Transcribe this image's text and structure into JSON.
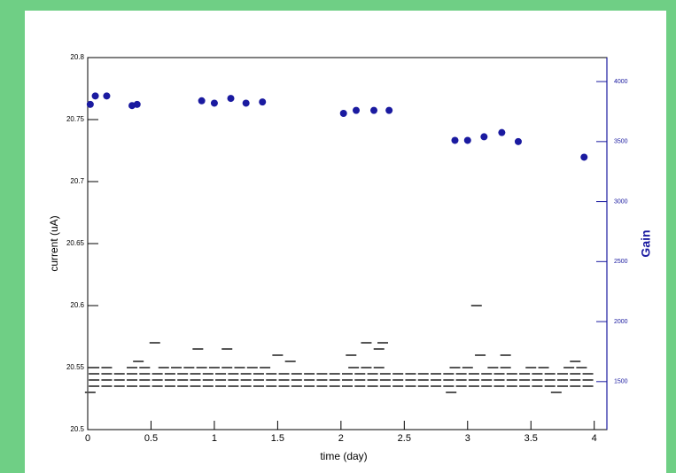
{
  "chart_data": {
    "type": "scatter",
    "xlabel": "time (day)",
    "ylabel": "current (uA)",
    "y2label": "Gain",
    "xlim": [
      0,
      4.1
    ],
    "xticks": [
      0,
      0.5,
      1,
      1.5,
      2,
      2.5,
      3,
      3.5,
      4
    ],
    "ylim": [
      20.5,
      20.8
    ],
    "yticks": [
      20.5,
      20.55,
      20.6,
      20.65,
      20.7,
      20.75,
      20.8
    ],
    "y2lim": [
      1100,
      4200
    ],
    "y2ticks": [
      1500,
      2000,
      2500,
      3000,
      3500,
      4000
    ],
    "series": [
      {
        "color": "#555555",
        "axis": "y",
        "x": [
          0.05,
          0.15,
          0.25,
          0.35,
          0.45,
          0.55,
          0.65,
          0.75,
          0.85,
          0.95,
          1.05,
          1.15,
          1.25,
          1.35,
          1.45,
          1.55,
          1.65,
          1.75,
          1.85,
          1.95,
          2.05,
          2.15,
          2.25,
          2.35,
          2.45,
          2.55,
          2.65,
          2.75,
          2.85,
          2.95,
          3.05,
          3.15,
          3.25,
          3.35,
          3.45,
          3.55,
          3.65,
          3.75,
          3.85,
          3.95,
          0.05,
          0.15,
          0.25,
          0.35,
          0.45,
          0.55,
          0.65,
          0.75,
          0.85,
          0.95,
          1.05,
          1.15,
          1.25,
          1.35,
          1.45,
          1.55,
          1.65,
          1.75,
          1.85,
          1.95,
          2.05,
          2.15,
          2.25,
          2.35,
          2.45,
          2.55,
          2.65,
          2.75,
          2.85,
          2.95,
          3.05,
          3.15,
          3.25,
          3.35,
          3.45,
          3.55,
          3.65,
          3.75,
          3.85,
          3.95,
          0.05,
          0.15,
          0.25,
          0.35,
          0.45,
          0.55,
          0.65,
          0.75,
          0.85,
          0.95,
          1.05,
          1.15,
          1.25,
          1.35,
          1.45,
          1.55,
          1.65,
          1.75,
          1.85,
          1.95,
          2.05,
          2.15,
          2.25,
          2.35,
          2.45,
          2.55,
          2.65,
          2.75,
          2.85,
          2.95,
          3.05,
          3.15,
          3.25,
          3.35,
          3.45,
          3.55,
          3.65,
          3.75,
          3.85,
          3.95,
          0.05,
          0.15,
          0.35,
          0.45,
          0.6,
          0.7,
          0.8,
          0.9,
          1.0,
          1.1,
          1.2,
          1.3,
          1.4,
          2.1,
          2.2,
          2.3,
          2.9,
          3.0,
          3.2,
          3.3,
          3.5,
          3.6,
          3.8,
          3.9,
          0.53,
          0.87,
          1.1,
          0.4,
          1.5,
          1.6,
          2.08,
          2.2,
          2.3,
          2.33,
          3.07,
          3.1,
          3.3,
          3.85,
          0.02,
          2.87,
          3.7
        ],
        "values": [
          20.545,
          20.545,
          20.545,
          20.545,
          20.545,
          20.545,
          20.545,
          20.545,
          20.545,
          20.545,
          20.545,
          20.545,
          20.545,
          20.545,
          20.545,
          20.545,
          20.545,
          20.545,
          20.545,
          20.545,
          20.545,
          20.545,
          20.545,
          20.545,
          20.545,
          20.545,
          20.545,
          20.545,
          20.545,
          20.545,
          20.545,
          20.545,
          20.545,
          20.545,
          20.545,
          20.545,
          20.545,
          20.545,
          20.545,
          20.545,
          20.54,
          20.54,
          20.54,
          20.54,
          20.54,
          20.54,
          20.54,
          20.54,
          20.54,
          20.54,
          20.54,
          20.54,
          20.54,
          20.54,
          20.54,
          20.54,
          20.54,
          20.54,
          20.54,
          20.54,
          20.54,
          20.54,
          20.54,
          20.54,
          20.54,
          20.54,
          20.54,
          20.54,
          20.54,
          20.54,
          20.54,
          20.54,
          20.54,
          20.54,
          20.54,
          20.54,
          20.54,
          20.54,
          20.54,
          20.54,
          20.535,
          20.535,
          20.535,
          20.535,
          20.535,
          20.535,
          20.535,
          20.535,
          20.535,
          20.535,
          20.535,
          20.535,
          20.535,
          20.535,
          20.535,
          20.535,
          20.535,
          20.535,
          20.535,
          20.535,
          20.535,
          20.535,
          20.535,
          20.535,
          20.535,
          20.535,
          20.535,
          20.535,
          20.535,
          20.535,
          20.535,
          20.535,
          20.535,
          20.535,
          20.535,
          20.535,
          20.535,
          20.535,
          20.535,
          20.535,
          20.55,
          20.55,
          20.55,
          20.55,
          20.55,
          20.55,
          20.55,
          20.55,
          20.55,
          20.55,
          20.55,
          20.55,
          20.55,
          20.55,
          20.55,
          20.55,
          20.55,
          20.55,
          20.55,
          20.55,
          20.55,
          20.55,
          20.55,
          20.55,
          20.57,
          20.565,
          20.565,
          20.555,
          20.56,
          20.555,
          20.56,
          20.57,
          20.565,
          20.57,
          20.6,
          20.56,
          20.56,
          20.555,
          20.53,
          20.53,
          20.53
        ]
      },
      {
        "color": "#1a1aa0",
        "axis": "y2",
        "x": [
          0.02,
          0.06,
          0.15,
          0.35,
          0.39,
          0.9,
          1.0,
          1.13,
          1.25,
          1.38,
          2.02,
          2.12,
          2.26,
          2.38,
          2.9,
          3.0,
          3.13,
          3.27,
          3.4,
          3.92
        ],
        "values": [
          3810,
          3880,
          3880,
          3800,
          3810,
          3840,
          3820,
          3860,
          3820,
          3830,
          3735,
          3760,
          3760,
          3760,
          3510,
          3510,
          3540,
          3575,
          3500,
          3370
        ]
      }
    ]
  }
}
